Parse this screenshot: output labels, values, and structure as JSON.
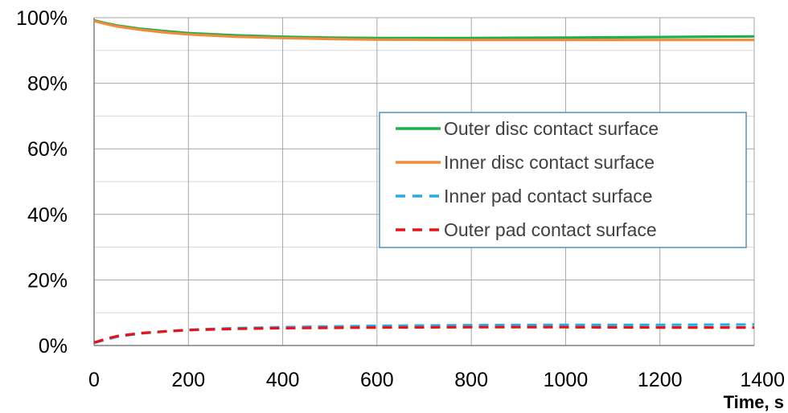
{
  "chart_data": {
    "type": "line",
    "title": "",
    "xlabel": "Time, s",
    "ylabel": "",
    "xlim": [
      0,
      1400
    ],
    "ylim": [
      0,
      100
    ],
    "x_ticks": [
      0,
      200,
      400,
      600,
      800,
      1000,
      1200,
      1400
    ],
    "x_tick_labels": [
      "0",
      "200",
      "400",
      "600",
      "800",
      "1000",
      "1200",
      "1400"
    ],
    "y_ticks": [
      0,
      20,
      40,
      60,
      80,
      100
    ],
    "y_tick_labels": [
      "0%",
      "20%",
      "40%",
      "60%",
      "80%",
      "100%"
    ],
    "grid": {
      "x": true,
      "y": true,
      "minor_y": true
    },
    "legend_position": "right",
    "series": [
      {
        "name": "Outer disc contact surface",
        "color": "#1fb04a",
        "style": "solid",
        "x": [
          0,
          25,
          50,
          100,
          150,
          200,
          300,
          400,
          500,
          600,
          800,
          1000,
          1200,
          1400
        ],
        "y": [
          99.2,
          98.3,
          97.6,
          96.6,
          95.9,
          95.3,
          94.6,
          94.2,
          93.9,
          93.8,
          93.8,
          93.9,
          94.1,
          94.3
        ]
      },
      {
        "name": "Inner disc contact surface",
        "color": "#f08a3c",
        "style": "solid",
        "x": [
          0,
          25,
          50,
          100,
          150,
          200,
          300,
          400,
          500,
          600,
          800,
          1000,
          1200,
          1400
        ],
        "y": [
          99.0,
          98.1,
          97.3,
          96.3,
          95.5,
          94.9,
          94.2,
          93.8,
          93.5,
          93.3,
          93.2,
          93.2,
          93.2,
          93.2
        ]
      },
      {
        "name": "Inner pad contact surface",
        "color": "#29abe2",
        "style": "dashed",
        "x": [
          0,
          25,
          50,
          100,
          150,
          200,
          300,
          400,
          500,
          600,
          800,
          1000,
          1200,
          1400
        ],
        "y": [
          0.8,
          1.8,
          2.7,
          3.7,
          4.3,
          4.8,
          5.3,
          5.6,
          5.8,
          6.0,
          6.2,
          6.3,
          6.3,
          6.4
        ]
      },
      {
        "name": "Outer pad contact surface",
        "color": "#e3151a",
        "style": "dashed",
        "x": [
          0,
          25,
          50,
          100,
          150,
          200,
          300,
          400,
          500,
          600,
          800,
          1000,
          1200,
          1400
        ],
        "y": [
          0.9,
          2.0,
          2.9,
          3.8,
          4.3,
          4.7,
          5.1,
          5.3,
          5.4,
          5.5,
          5.6,
          5.6,
          5.5,
          5.5
        ]
      }
    ]
  }
}
